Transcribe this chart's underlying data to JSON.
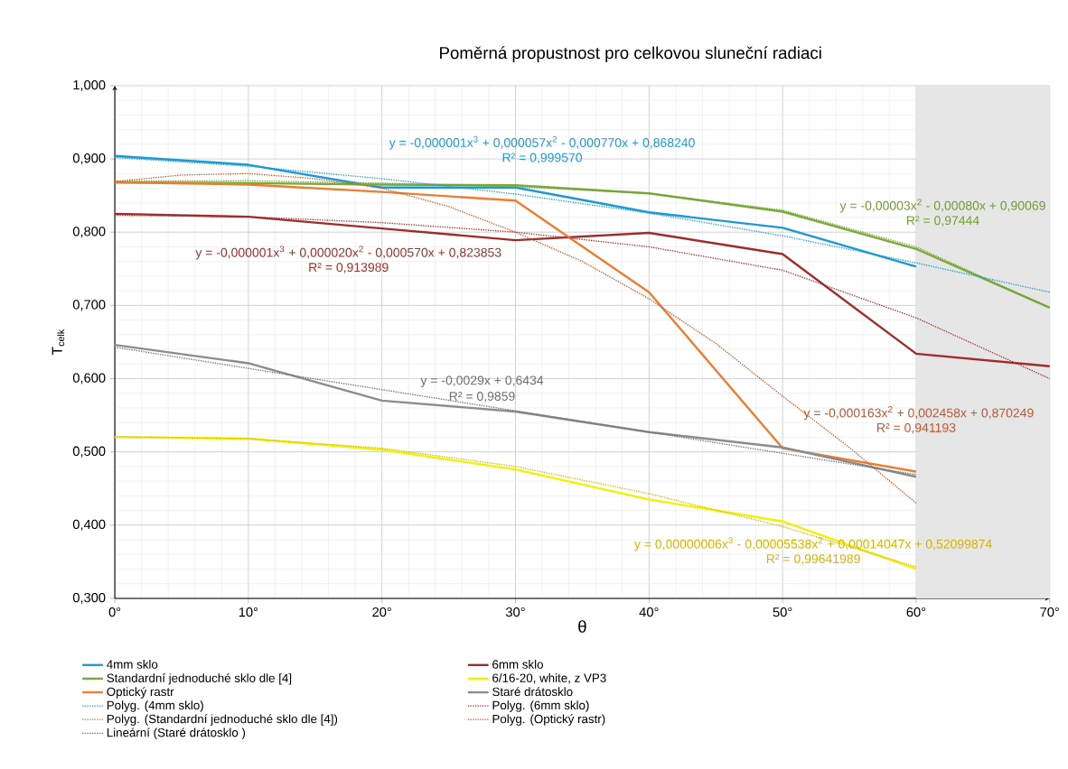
{
  "chart_data": {
    "type": "line",
    "title": "Poměrná propustnost pro celkovou sluneční radiaci",
    "xlabel": "θ",
    "ylabel": "T$_{celk}$",
    "xlim": [
      0,
      70
    ],
    "ylim": [
      0.3,
      1.0
    ],
    "xticks": [
      {
        "value": 0,
        "label": "0°"
      },
      {
        "value": 10,
        "label": "10°"
      },
      {
        "value": 20,
        "label": "20°"
      },
      {
        "value": 30,
        "label": "30°"
      },
      {
        "value": 40,
        "label": "40°"
      },
      {
        "value": 50,
        "label": "50°"
      },
      {
        "value": 60,
        "label": "60°"
      },
      {
        "value": 70,
        "label": "70°"
      }
    ],
    "yticks": [
      {
        "value": 0.3,
        "label": "0,300"
      },
      {
        "value": 0.4,
        "label": "0,400"
      },
      {
        "value": 0.5,
        "label": "0,500"
      },
      {
        "value": 0.6,
        "label": "0,600"
      },
      {
        "value": 0.7,
        "label": "0,700"
      },
      {
        "value": 0.8,
        "label": "0,800"
      },
      {
        "value": 0.9,
        "label": "0,900"
      },
      {
        "value": 1.0,
        "label": "1,000"
      }
    ],
    "grid": true,
    "legend": "bottom",
    "marker": "none",
    "bands": [
      {
        "axis": "x",
        "from": 60,
        "to": 70,
        "color": "#e6e6e6"
      }
    ],
    "series": [
      {
        "name": "4mm sklo",
        "color": "#1b9ad6",
        "x": [
          0,
          10,
          20,
          30,
          40,
          50,
          60
        ],
        "values": [
          0.904,
          0.892,
          0.861,
          0.861,
          0.827,
          0.806,
          0.753
        ]
      },
      {
        "name": "6mm sklo",
        "color": "#a02b2b",
        "x": [
          0,
          10,
          20,
          30,
          40,
          50,
          60,
          70
        ],
        "values": [
          0.825,
          0.821,
          0.805,
          0.789,
          0.799,
          0.77,
          0.634,
          0.617
        ]
      },
      {
        "name": "Standardní jednoduché sklo dle [4]",
        "color": "#7aab3a",
        "x": [
          0,
          10,
          20,
          30,
          40,
          50,
          60,
          70
        ],
        "values": [
          0.868,
          0.867,
          0.865,
          0.864,
          0.853,
          0.828,
          0.777,
          0.697
        ]
      },
      {
        "name": "6/16-20, white, z VP3",
        "color": "#f2f200",
        "x": [
          0,
          10,
          20,
          30,
          40,
          50,
          60
        ],
        "values": [
          0.52,
          0.518,
          0.503,
          0.476,
          0.435,
          0.405,
          0.34
        ]
      },
      {
        "name": "Optický rastr",
        "color": "#ed7d31",
        "x": [
          0,
          10,
          20,
          30,
          40,
          50,
          60
        ],
        "values": [
          0.868,
          0.865,
          0.855,
          0.843,
          0.718,
          0.505,
          0.473
        ]
      },
      {
        "name": "Staré drátosklo",
        "color": "#8c8c8c",
        "x": [
          0,
          10,
          20,
          30,
          40,
          50,
          60
        ],
        "values": [
          0.646,
          0.621,
          0.57,
          0.555,
          0.527,
          0.506,
          0.466
        ]
      },
      {
        "name": "Polyg. (4mm sklo)",
        "color": "#1b9ad6",
        "line_style": "dotted",
        "x": [
          0,
          10,
          20,
          30,
          40,
          50,
          60,
          70
        ],
        "values": [
          0.902,
          0.89,
          0.873,
          0.852,
          0.826,
          0.795,
          0.758,
          0.718
        ]
      },
      {
        "name": "Polyg. (6mm sklo)",
        "color": "#a0302a",
        "line_style": "dotted",
        "x": [
          0,
          10,
          20,
          30,
          40,
          50,
          60,
          70
        ],
        "values": [
          0.823,
          0.821,
          0.813,
          0.8,
          0.78,
          0.748,
          0.683,
          0.6
        ]
      },
      {
        "name": "Polyg. (Standardní jednoduché sklo dle [4])",
        "color": "#6f9e30",
        "line_style": "dotted",
        "x": [
          0,
          10,
          20,
          30,
          40,
          50,
          60,
          70
        ],
        "values": [
          0.87,
          0.87,
          0.867,
          0.862,
          0.853,
          0.83,
          0.78,
          0.697
        ]
      },
      {
        "name": "Polyg. (Optický rastr)",
        "color": "#c0562a",
        "line_style": "dotted",
        "x": [
          0,
          5,
          10,
          15,
          20,
          25,
          30,
          35,
          40,
          45,
          50,
          55,
          60
        ],
        "values": [
          0.869,
          0.878,
          0.88,
          0.873,
          0.86,
          0.835,
          0.8,
          0.76,
          0.709,
          0.648,
          0.576,
          0.506,
          0.43
        ]
      },
      {
        "name": "Lineární (Staré drátosklo )",
        "color": "#6e6e6e",
        "line_style": "dotted",
        "x": [
          0,
          10,
          20,
          30,
          40,
          50,
          60
        ],
        "values": [
          0.643,
          0.614,
          0.585,
          0.556,
          0.527,
          0.498,
          0.469
        ]
      },
      {
        "color": "#d4b400",
        "line_style": "dotted",
        "x": [
          0,
          10,
          20,
          30,
          40,
          50,
          60
        ],
        "values": [
          0.521,
          0.518,
          0.505,
          0.48,
          0.443,
          0.398,
          0.343
        ]
      }
    ],
    "annotations": [
      "y = -0,000001x$^{3}$ + 0,000057x$^{2}$ - 0,000770x + 0,868240",
      "R² = 0,999570",
      "y = -0,000001x$^{3}$ + 0,000020x$^{2}$ - 0,000570x + 0,823853",
      "R² = 0,913989",
      "y = -0,00003x$^{2}$ - 0,00080x + 0,90069",
      "R² = 0,97444",
      "y = -0,000163x$^{2}$ + 0,002458x + 0,870249",
      "R² = 0,941193",
      "y = -0,0029x + 0,6434",
      "R² = 0,9859",
      "y = 0,00000006x$^{3}$ - 0,00005538x$^{2}$ + 0,00014047x + 0,52099874",
      "R² = 0,99641989"
    ]
  }
}
